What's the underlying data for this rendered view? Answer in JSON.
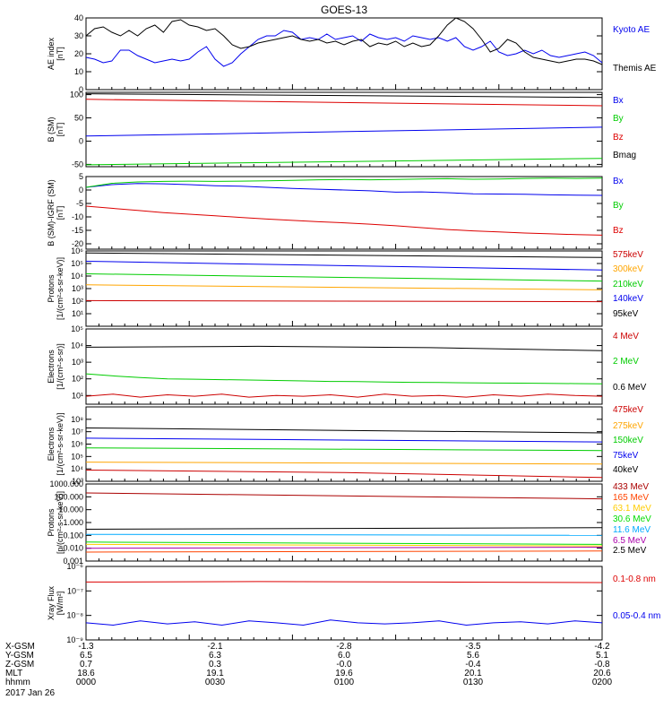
{
  "title": "GOES-13",
  "date": "2017 Jan 26",
  "chart_data": [
    {
      "type": "line",
      "panel": "ae",
      "ylabel": [
        "AE index",
        "[nT]"
      ],
      "ylim": [
        0,
        40
      ],
      "yticks": [
        "0",
        "10",
        "20",
        "30",
        "40"
      ],
      "ytick_values": [
        0,
        10,
        20,
        30,
        40
      ],
      "scale": "linear",
      "series": [
        {
          "name": "Kyoto AE",
          "color": "#0000ee",
          "values": [
            18,
            17,
            15,
            16,
            22,
            22,
            19,
            17,
            15,
            16,
            17,
            16,
            17,
            21,
            24,
            17,
            13,
            15,
            20,
            24,
            28,
            30,
            30,
            33,
            32,
            28,
            29,
            28,
            31,
            28,
            29,
            30,
            27,
            31,
            29,
            28,
            29,
            27,
            30,
            29,
            28,
            29,
            27,
            29,
            24,
            22,
            24,
            27,
            21,
            19,
            20,
            22,
            20,
            22,
            19,
            18,
            19,
            20,
            21,
            19,
            15
          ]
        },
        {
          "name": "Themis AE",
          "color": "#000000",
          "values": [
            30,
            34,
            35,
            32,
            30,
            33,
            30,
            34,
            36,
            32,
            38,
            39,
            36,
            35,
            33,
            34,
            30,
            25,
            23,
            24,
            26,
            27,
            28,
            29,
            30,
            28,
            27,
            28,
            26,
            27,
            25,
            27,
            28,
            24,
            26,
            25,
            27,
            24,
            26,
            24,
            25,
            30,
            36,
            40,
            38,
            34,
            28,
            21,
            23,
            28,
            26,
            21,
            18,
            17,
            16,
            15,
            16,
            17,
            17,
            16,
            14
          ]
        }
      ]
    },
    {
      "type": "line",
      "panel": "b_sm",
      "ylabel": [
        "B (SM)",
        "[nT]"
      ],
      "ylim": [
        -55,
        105
      ],
      "yticks": [
        "-50",
        "0",
        "50",
        "100"
      ],
      "ytick_values": [
        -50,
        0,
        50,
        100
      ],
      "scale": "linear",
      "series": [
        {
          "name": "Bx",
          "color": "#0000ee",
          "values": [
            11,
            30
          ]
        },
        {
          "name": "By",
          "color": "#00cc00",
          "values": [
            -51,
            -37
          ]
        },
        {
          "name": "Bz",
          "color": "#dd0000",
          "values": [
            90,
            76
          ]
        },
        {
          "name": "Bmag",
          "color": "#000000",
          "values": [
            102,
            94
          ]
        }
      ]
    },
    {
      "type": "line",
      "panel": "b_igrf",
      "ylabel": [
        "B (SM)-IGRF (SM)",
        "[nT]"
      ],
      "ylim": [
        -22,
        5
      ],
      "yticks": [
        "-20",
        "-15",
        "-10",
        "-5",
        "0",
        "5"
      ],
      "ytick_values": [
        -20,
        -15,
        -10,
        -5,
        0,
        5
      ],
      "scale": "linear",
      "series": [
        {
          "name": "Bx",
          "color": "#0000ee",
          "values": [
            1,
            2,
            2.4,
            2.3,
            2,
            1.6,
            1.4,
            1,
            0.6,
            0.3,
            0,
            -0.3,
            -0.8,
            -0.7,
            -1,
            -1.4,
            -1.5,
            -1.6,
            -1.8,
            -1.9,
            -2
          ]
        },
        {
          "name": "By",
          "color": "#00cc00",
          "values": [
            1,
            2.5,
            3,
            3.2,
            3.3,
            3.2,
            3.3,
            3.4,
            3.6,
            3.8,
            3.9,
            3.8,
            3.9,
            4.1,
            4.2,
            4.0,
            4.1,
            4.3,
            4.4,
            4.3,
            4.4
          ]
        },
        {
          "name": "Bz",
          "color": "#dd0000",
          "values": [
            -6,
            -6.8,
            -7.6,
            -8.4,
            -9,
            -9.6,
            -10.2,
            -10.8,
            -11.3,
            -11.8,
            -12.2,
            -12.7,
            -13.3,
            -14,
            -14.7,
            -15.2,
            -15.6,
            -16,
            -16.3,
            -16.6,
            -16.8
          ]
        }
      ]
    },
    {
      "type": "line",
      "panel": "protons",
      "ylabel": [
        "Protons",
        "[1/(cm²-s-sr-keV)]"
      ],
      "ylim": [
        1,
        1000000
      ],
      "yticks": [
        "10¹",
        "10²",
        "10³",
        "10⁴",
        "10⁵",
        "10⁶"
      ],
      "ytick_values": [
        10,
        100,
        1000,
        10000,
        100000,
        1000000
      ],
      "scale": "log",
      "series": [
        {
          "name": "575keV",
          "color": "#cc0000",
          "values": [
            110,
            90
          ]
        },
        {
          "name": "300keV",
          "color": "#ffa500",
          "values": [
            2000,
            800
          ]
        },
        {
          "name": "210keV",
          "color": "#00cc00",
          "values": [
            15000,
            4000
          ]
        },
        {
          "name": "140keV",
          "color": "#0000ee",
          "values": [
            150000,
            30000
          ]
        },
        {
          "name": "95keV",
          "color": "#000000",
          "values": [
            700000,
            300000
          ]
        }
      ]
    },
    {
      "type": "line",
      "panel": "electrons_mev",
      "ylabel": [
        "Electrons",
        "[1/(cm²-s-sr)]"
      ],
      "ylim": [
        3,
        100000
      ],
      "yticks": [
        "10¹",
        "10²",
        "10³",
        "10⁴",
        "10⁵"
      ],
      "ytick_values": [
        10,
        100,
        1000,
        10000,
        100000
      ],
      "scale": "log",
      "series": [
        {
          "name": "4 MeV",
          "color": "#cc0000",
          "values": [
            9,
            12,
            8,
            11,
            9,
            12,
            8,
            10,
            9,
            11,
            8,
            12,
            9,
            10,
            8,
            11,
            9,
            12,
            10,
            9
          ]
        },
        {
          "name": "2 MeV",
          "color": "#00cc00",
          "values": [
            200,
            150,
            120,
            100,
            95,
            90,
            85,
            80,
            75,
            70,
            68,
            65,
            62,
            60,
            58,
            56,
            55,
            54,
            52,
            50
          ]
        },
        {
          "name": "0.6 MeV",
          "color": "#000000",
          "values": [
            8000,
            9000,
            7500,
            5000
          ]
        }
      ]
    },
    {
      "type": "line",
      "panel": "electrons_kev",
      "ylabel": [
        "Electrons",
        "[1/(cm²-s-sr-keV)]"
      ],
      "ylim": [
        1000,
        1000000000
      ],
      "yticks": [
        "10³",
        "10⁴",
        "10⁵",
        "10⁶",
        "10⁷",
        "10⁸"
      ],
      "ytick_values": [
        1000,
        10000,
        100000,
        1000000,
        10000000,
        100000000
      ],
      "scale": "log",
      "series": [
        {
          "name": "475keV",
          "color": "#cc0000",
          "values": [
            8000,
            5000,
            2000
          ]
        },
        {
          "name": "275keV",
          "color": "#ffa500",
          "values": [
            35000,
            25000
          ]
        },
        {
          "name": "150keV",
          "color": "#00cc00",
          "values": [
            500000,
            300000
          ]
        },
        {
          "name": "75keV",
          "color": "#0000ee",
          "values": [
            3000000,
            1500000
          ]
        },
        {
          "name": "40keV",
          "color": "#000000",
          "values": [
            20000000,
            8000000
          ]
        }
      ]
    },
    {
      "type": "line",
      "panel": "protons_mev",
      "ylabel": [
        "Protons",
        "[p/(cm²-s-sr-keV)]"
      ],
      "ylim": [
        0.001,
        1000
      ],
      "yticks": [
        "0.001",
        "0.010",
        "0.100",
        "1.000",
        "10.000",
        "100.000",
        "1000.000"
      ],
      "ytick_values": [
        0.001,
        0.01,
        0.1,
        1,
        10,
        100,
        1000
      ],
      "scale": "log",
      "series": [
        {
          "name": "433 MeV",
          "color": "#aa0000",
          "values": [
            200,
            70
          ]
        },
        {
          "name": "165 MeV",
          "color": "#ff4400",
          "values": [
            0.005,
            0.006
          ]
        },
        {
          "name": "63.1 MeV",
          "color": "#ffcc00",
          "values": [
            0.02,
            0.015
          ]
        },
        {
          "name": "30.6 MeV",
          "color": "#00dd00",
          "values": [
            0.03,
            0.02
          ]
        },
        {
          "name": "11.6 MeV",
          "color": "#00aaff",
          "values": [
            0.12,
            0.1
          ]
        },
        {
          "name": "6.5 MeV",
          "color": "#aa00aa",
          "values": [
            0.01,
            0.012
          ]
        },
        {
          "name": "2.5 MeV",
          "color": "#000000",
          "values": [
            0.3,
            0.4
          ]
        }
      ]
    },
    {
      "type": "line",
      "panel": "xray",
      "ylabel": [
        "Xray Flux",
        "[W/m²]"
      ],
      "ylim": [
        1e-09,
        1e-06
      ],
      "yticks": [
        "10⁻⁹",
        "10⁻⁸",
        "10⁻⁷",
        "10⁻⁶"
      ],
      "ytick_values": [
        1e-09,
        1e-08,
        1e-07,
        1e-06
      ],
      "scale": "log",
      "series": [
        {
          "name": "0.1-0.8 nm",
          "color": "#dd0000",
          "values": [
            2.3e-07,
            2.4e-07,
            2.3e-07,
            2.2e-07
          ]
        },
        {
          "name": "0.05-0.4 nm",
          "color": "#0000ee",
          "values": [
            5e-09,
            4e-09,
            6e-09,
            4.5e-09,
            5.5e-09,
            4e-09,
            6e-09,
            5e-09,
            4e-09,
            6.5e-09,
            5e-09,
            4.5e-09,
            5e-09,
            6e-09,
            4e-09,
            5e-09,
            5.5e-09,
            4.5e-09,
            6e-09,
            5e-09
          ]
        }
      ]
    }
  ],
  "xaxis": {
    "row_labels": [
      "X-GSM",
      "Y-GSM",
      "Z-GSM",
      "MLT",
      "hhmm"
    ],
    "columns": [
      [
        "-1.3",
        "6.5",
        "0.7",
        "18.6",
        "0000"
      ],
      [
        "-2.1",
        "6.3",
        "0.3",
        "19.1",
        "0030"
      ],
      [
        "-2.8",
        "6.0",
        "-0.0",
        "19.6",
        "0100"
      ],
      [
        "-3.5",
        "5.6",
        "-0.4",
        "20.1",
        "0130"
      ],
      [
        "-4.2",
        "5.1",
        "-0.8",
        "20.6",
        "0200"
      ]
    ]
  }
}
